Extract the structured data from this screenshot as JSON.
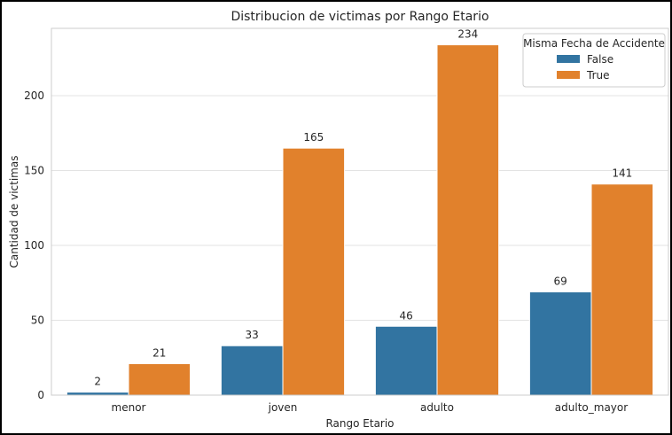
{
  "chart_data": {
    "type": "bar",
    "title": "Distribucion de victimas por Rango Etario",
    "xlabel": "Rango Etario",
    "ylabel": "Cantidad de victimas",
    "categories": [
      "menor",
      "joven",
      "adulto",
      "adulto_mayor"
    ],
    "series": [
      {
        "name": "False",
        "color": "#3274a1",
        "values": [
          2,
          33,
          46,
          69
        ]
      },
      {
        "name": "True",
        "color": "#e1812c",
        "values": [
          21,
          165,
          234,
          141
        ]
      }
    ],
    "yticks": [
      0,
      50,
      100,
      150,
      200
    ],
    "ylim": [
      0,
      245
    ],
    "grid": true,
    "legend": {
      "title": "Misma Fecha de Accidente",
      "position": "top-right"
    },
    "data_labels": true
  }
}
